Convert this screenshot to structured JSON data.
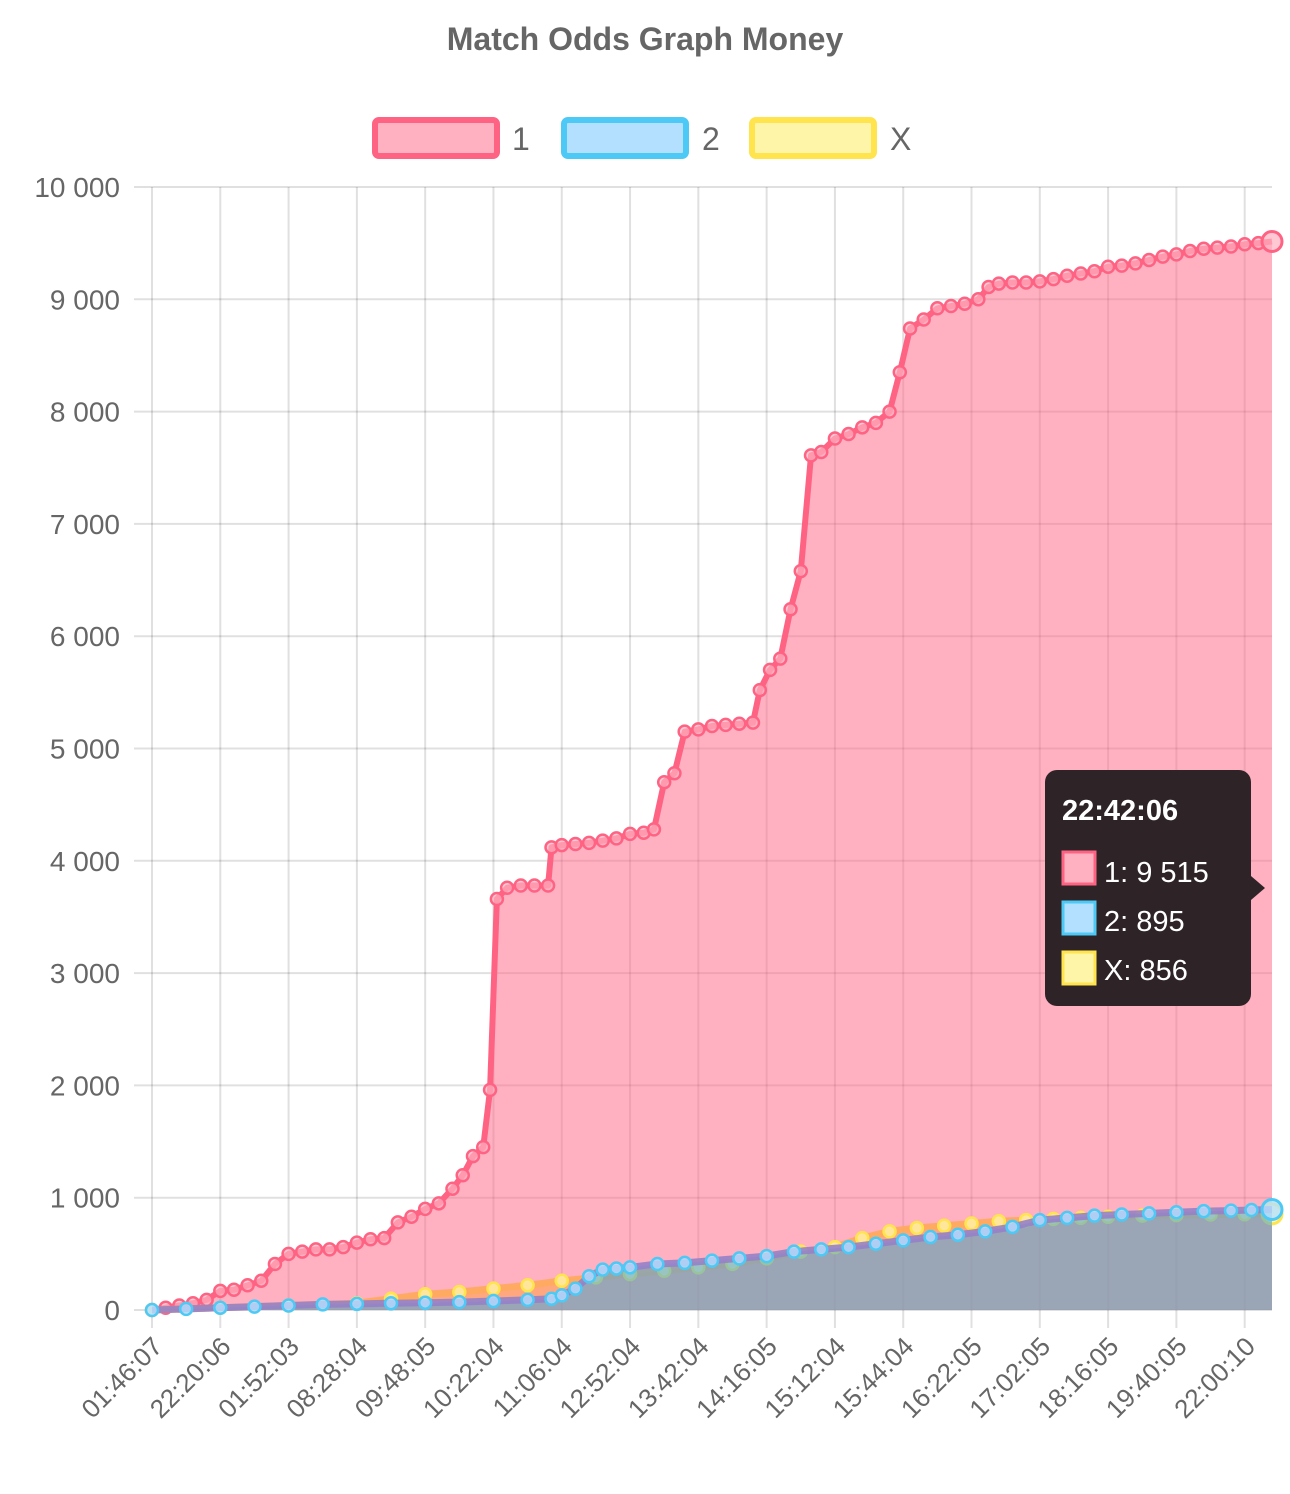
{
  "chart_data": {
    "type": "area",
    "title": "Match Odds Graph Money",
    "legend": {
      "position": "top"
    },
    "x_tick_labels": [
      "01:46:07",
      "22:20:06",
      "01:52:03",
      "08:28:04",
      "09:48:05",
      "10:22:04",
      "11:06:04",
      "12:52:04",
      "13:42:04",
      "14:16:05",
      "15:12:04",
      "15:44:04",
      "16:22:05",
      "17:02:05",
      "18:16:05",
      "19:40:05",
      "22:00:10"
    ],
    "ylim": [
      0,
      10000
    ],
    "y_ticks": [
      0,
      1000,
      2000,
      3000,
      4000,
      5000,
      6000,
      7000,
      8000,
      9000,
      10000
    ],
    "y_tick_labels": [
      "0",
      "1 000",
      "2 000",
      "3 000",
      "4 000",
      "5 000",
      "6 000",
      "7 000",
      "8 000",
      "9 000",
      "10 000"
    ],
    "x_range": [
      0,
      16.4
    ],
    "grid": true,
    "series": [
      {
        "name": "1",
        "border_color": "#ff6384",
        "fill_color": "#ffb1c1",
        "points": [
          [
            0,
            0
          ],
          [
            0.2,
            20
          ],
          [
            0.4,
            40
          ],
          [
            0.6,
            60
          ],
          [
            0.8,
            90
          ],
          [
            1.0,
            170
          ],
          [
            1.2,
            180
          ],
          [
            1.4,
            220
          ],
          [
            1.6,
            260
          ],
          [
            1.8,
            410
          ],
          [
            2.0,
            500
          ],
          [
            2.2,
            520
          ],
          [
            2.4,
            540
          ],
          [
            2.6,
            540
          ],
          [
            2.8,
            560
          ],
          [
            3.0,
            600
          ],
          [
            3.2,
            630
          ],
          [
            3.4,
            640
          ],
          [
            3.6,
            780
          ],
          [
            3.8,
            830
          ],
          [
            4.0,
            900
          ],
          [
            4.2,
            950
          ],
          [
            4.4,
            1080
          ],
          [
            4.55,
            1200
          ],
          [
            4.7,
            1370
          ],
          [
            4.85,
            1450
          ],
          [
            4.95,
            1960
          ],
          [
            5.05,
            3660
          ],
          [
            5.2,
            3760
          ],
          [
            5.4,
            3780
          ],
          [
            5.6,
            3780
          ],
          [
            5.8,
            3780
          ],
          [
            5.85,
            4120
          ],
          [
            6.0,
            4140
          ],
          [
            6.2,
            4150
          ],
          [
            6.4,
            4160
          ],
          [
            6.6,
            4180
          ],
          [
            6.8,
            4200
          ],
          [
            7.0,
            4240
          ],
          [
            7.2,
            4250
          ],
          [
            7.35,
            4280
          ],
          [
            7.5,
            4700
          ],
          [
            7.65,
            4780
          ],
          [
            7.8,
            5150
          ],
          [
            8.0,
            5170
          ],
          [
            8.2,
            5200
          ],
          [
            8.4,
            5210
          ],
          [
            8.6,
            5220
          ],
          [
            8.8,
            5230
          ],
          [
            8.9,
            5520
          ],
          [
            9.05,
            5700
          ],
          [
            9.2,
            5800
          ],
          [
            9.35,
            6240
          ],
          [
            9.5,
            6580
          ],
          [
            9.65,
            7610
          ],
          [
            9.8,
            7640
          ],
          [
            10.0,
            7760
          ],
          [
            10.2,
            7800
          ],
          [
            10.4,
            7860
          ],
          [
            10.6,
            7900
          ],
          [
            10.8,
            8000
          ],
          [
            10.95,
            8350
          ],
          [
            11.1,
            8740
          ],
          [
            11.3,
            8820
          ],
          [
            11.5,
            8920
          ],
          [
            11.7,
            8940
          ],
          [
            11.9,
            8960
          ],
          [
            12.1,
            9000
          ],
          [
            12.25,
            9110
          ],
          [
            12.4,
            9140
          ],
          [
            12.6,
            9150
          ],
          [
            12.8,
            9150
          ],
          [
            13.0,
            9160
          ],
          [
            13.2,
            9180
          ],
          [
            13.4,
            9210
          ],
          [
            13.6,
            9230
          ],
          [
            13.8,
            9250
          ],
          [
            14.0,
            9290
          ],
          [
            14.2,
            9300
          ],
          [
            14.4,
            9320
          ],
          [
            14.6,
            9350
          ],
          [
            14.8,
            9380
          ],
          [
            15.0,
            9400
          ],
          [
            15.2,
            9430
          ],
          [
            15.4,
            9450
          ],
          [
            15.6,
            9460
          ],
          [
            15.8,
            9470
          ],
          [
            16.0,
            9490
          ],
          [
            16.2,
            9500
          ],
          [
            16.4,
            9515
          ]
        ]
      },
      {
        "name": "2",
        "border_color": "#36a2eb",
        "fill_color": "#9ad0f5",
        "points": [
          [
            0,
            0
          ],
          [
            0.5,
            10
          ],
          [
            1.0,
            20
          ],
          [
            1.5,
            30
          ],
          [
            2.0,
            40
          ],
          [
            2.5,
            50
          ],
          [
            3.0,
            55
          ],
          [
            3.5,
            60
          ],
          [
            4.0,
            65
          ],
          [
            4.5,
            70
          ],
          [
            5.0,
            80
          ],
          [
            5.5,
            90
          ],
          [
            5.85,
            100
          ],
          [
            6.0,
            130
          ],
          [
            6.2,
            190
          ],
          [
            6.4,
            300
          ],
          [
            6.6,
            360
          ],
          [
            6.8,
            370
          ],
          [
            7.0,
            380
          ],
          [
            7.4,
            410
          ],
          [
            7.8,
            420
          ],
          [
            8.2,
            440
          ],
          [
            8.6,
            460
          ],
          [
            9.0,
            480
          ],
          [
            9.4,
            520
          ],
          [
            9.8,
            540
          ],
          [
            10.2,
            560
          ],
          [
            10.6,
            590
          ],
          [
            11.0,
            620
          ],
          [
            11.4,
            650
          ],
          [
            11.8,
            670
          ],
          [
            12.2,
            700
          ],
          [
            12.6,
            740
          ],
          [
            13.0,
            800
          ],
          [
            13.4,
            820
          ],
          [
            13.8,
            840
          ],
          [
            14.2,
            850
          ],
          [
            14.6,
            860
          ],
          [
            15.0,
            870
          ],
          [
            15.4,
            880
          ],
          [
            15.8,
            885
          ],
          [
            16.1,
            890
          ],
          [
            16.4,
            895
          ]
        ]
      },
      {
        "name": "X",
        "border_color": "#ffce56",
        "fill_color": "#ffe6aa",
        "points": [
          [
            0,
            0
          ],
          [
            1.0,
            20
          ],
          [
            2.0,
            40
          ],
          [
            3.0,
            60
          ],
          [
            3.5,
            100
          ],
          [
            4.0,
            140
          ],
          [
            4.5,
            160
          ],
          [
            5.0,
            190
          ],
          [
            5.5,
            220
          ],
          [
            6.0,
            260
          ],
          [
            6.5,
            290
          ],
          [
            7.0,
            320
          ],
          [
            7.5,
            350
          ],
          [
            8.0,
            380
          ],
          [
            8.5,
            410
          ],
          [
            9.0,
            460
          ],
          [
            9.5,
            520
          ],
          [
            10.0,
            560
          ],
          [
            10.4,
            640
          ],
          [
            10.8,
            700
          ],
          [
            11.2,
            730
          ],
          [
            11.6,
            750
          ],
          [
            12.0,
            770
          ],
          [
            12.4,
            790
          ],
          [
            12.8,
            800
          ],
          [
            13.2,
            810
          ],
          [
            13.6,
            820
          ],
          [
            14.0,
            830
          ],
          [
            14.5,
            840
          ],
          [
            15.0,
            845
          ],
          [
            15.5,
            850
          ],
          [
            16.0,
            853
          ],
          [
            16.4,
            856
          ]
        ]
      }
    ]
  },
  "tooltip": {
    "title": "22:42:06",
    "lines": [
      {
        "label": "1: 9 515",
        "color": "#ff6384",
        "fill": "#ffb1c1"
      },
      {
        "label": "2: 895",
        "color": "#36a2eb",
        "fill": "#b4e0ff"
      },
      {
        "label": "X: 856",
        "color": "#ffe44d",
        "fill": "#fff5a8"
      }
    ]
  }
}
